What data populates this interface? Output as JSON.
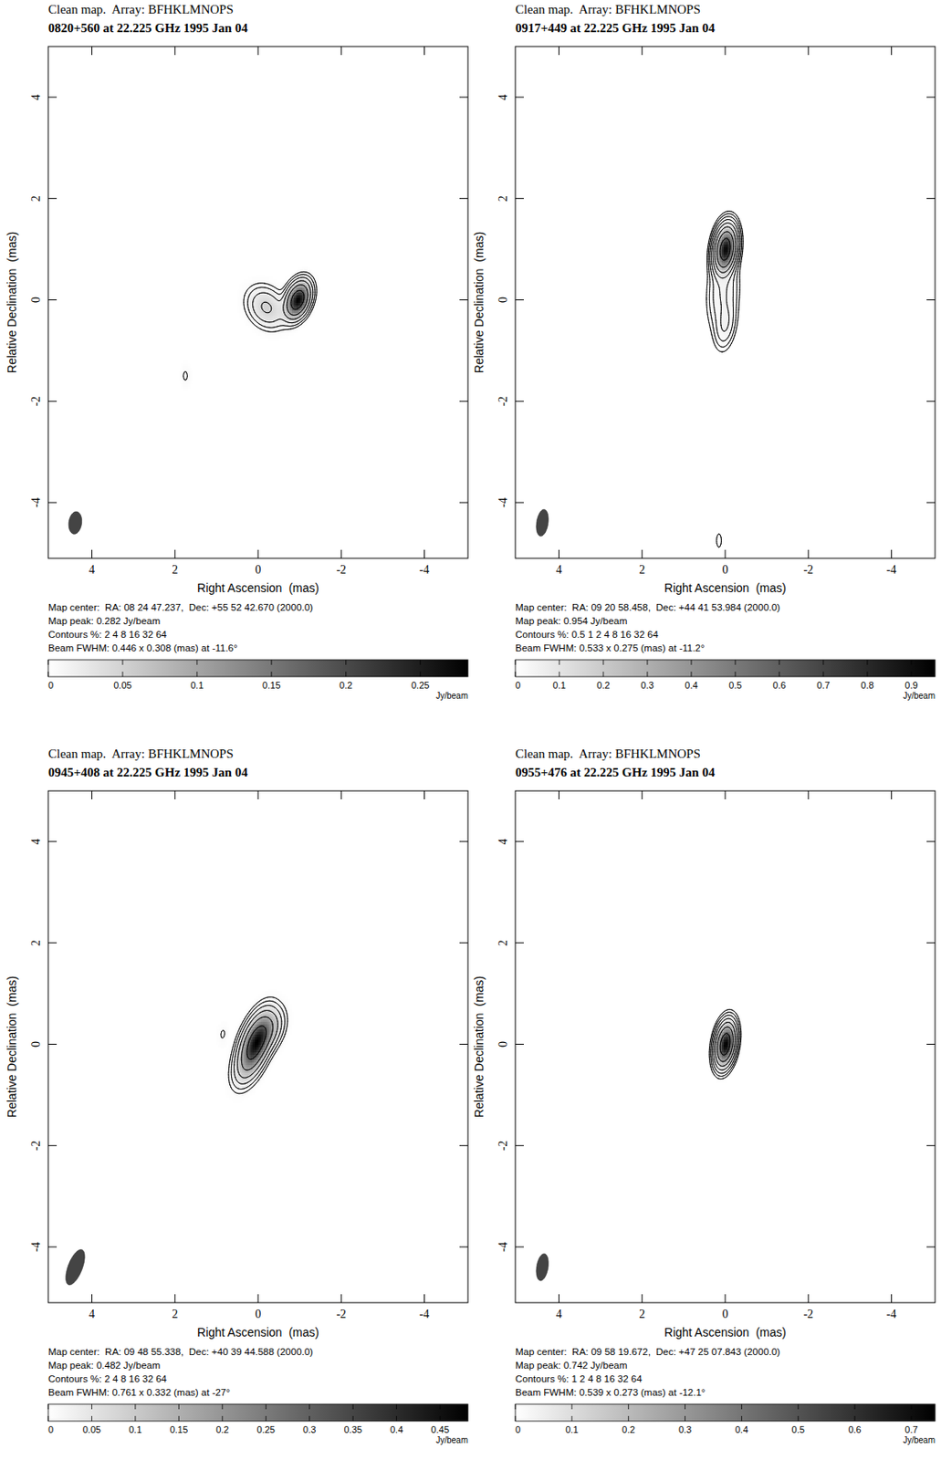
{
  "chart_data": [
    {
      "type": "contour",
      "title": "Clean map.  Array: BFHKLMNOPS",
      "subtitle": "0820+560 at 22.225 GHz 1995 Jan 04",
      "x_label": "Right Ascension  (mas)",
      "y_label": "Relative Declination  (mas)",
      "xlim": [
        5.05,
        -5.05
      ],
      "ylim": [
        -5.1,
        5.0
      ],
      "xticks": [
        4,
        2,
        0,
        -2,
        -4
      ],
      "yticks": [
        -4,
        -2,
        0,
        2,
        4
      ],
      "map_center": "Map center:  RA: 08 24 47.237,  Dec: +55 52 42.670 (2000.0)",
      "map_peak_label": "Map peak: 0.282 Jy/beam",
      "map_peak": 0.282,
      "contours_label": "Contours %: 2 4 8 16 32 64",
      "contours": [
        2,
        4,
        8,
        16,
        32,
        64
      ],
      "beam_label": "Beam FWHM: 0.446 x 0.308 (mas) at -11.6°",
      "beam": {
        "major": 0.446,
        "minor": 0.308,
        "pa": -11.6
      },
      "components": [
        {
          "x": -0.95,
          "y": 0.0,
          "peak": 0.28,
          "major": 0.5,
          "minor": 0.34,
          "pa": -30
        },
        {
          "x": -0.2,
          "y": -0.15,
          "peak": 0.05,
          "major": 0.65,
          "minor": 0.5,
          "pa": 60
        },
        {
          "x": 1.75,
          "y": -1.5,
          "peak": 0.0066,
          "major": 0.35,
          "minor": 0.2,
          "pa": 0
        }
      ],
      "colorbar": {
        "range": [
          0,
          0.282
        ],
        "ticks": [
          0,
          0.05,
          0.1,
          0.15,
          0.2,
          0.25
        ],
        "label": "Jy/beam"
      }
    },
    {
      "type": "contour",
      "title": "Clean map.  Array: BFHKLMNOPS",
      "subtitle": "0917+449 at 22.225 GHz 1995 Jan 04",
      "x_label": "Right Ascension  (mas)",
      "y_label": "Relative Declination  (mas)",
      "xlim": [
        5.05,
        -5.05
      ],
      "ylim": [
        -5.1,
        5.0
      ],
      "xticks": [
        4,
        2,
        0,
        -2,
        -4
      ],
      "yticks": [
        -4,
        -2,
        0,
        2,
        4
      ],
      "map_center": "Map center:  RA: 09 20 58.458,  Dec: +44 41 53.984 (2000.0)",
      "map_peak_label": "Map peak: 0.954 Jy/beam",
      "map_peak": 0.954,
      "contours_label": "Contours %: 0.5 1 2 4 8 16 32 64",
      "contours": [
        0.5,
        1,
        2,
        4,
        8,
        16,
        32,
        64
      ],
      "beam_label": "Beam FWHM: 0.533 x 0.275 (mas) at -11.2°",
      "beam": {
        "major": 0.533,
        "minor": 0.275,
        "pa": -11.2
      },
      "components": [
        {
          "x": 0.0,
          "y": 1.0,
          "peak": 0.93,
          "major": 0.55,
          "minor": 0.3,
          "pa": -10
        },
        {
          "x": 0.05,
          "y": 0.15,
          "peak": 0.04,
          "major": 1.0,
          "minor": 0.45,
          "pa": -5
        },
        {
          "x": 0.0,
          "y": -0.5,
          "peak": 0.035,
          "major": 0.6,
          "minor": 0.3,
          "pa": -10
        },
        {
          "x": 0.15,
          "y": -4.75,
          "peak": 0.006,
          "major": 0.45,
          "minor": 0.2,
          "pa": 0
        }
      ],
      "colorbar": {
        "range": [
          0,
          0.954
        ],
        "ticks": [
          0,
          0.1,
          0.2,
          0.3,
          0.4,
          0.5,
          0.6,
          0.7,
          0.8,
          0.9
        ],
        "label": "Jy/beam"
      }
    },
    {
      "type": "contour",
      "title": "Clean map.  Array: BFHKLMNOPS",
      "subtitle": "0945+408 at 22.225 GHz 1995 Jan 04",
      "x_label": "Right Ascension  (mas)",
      "y_label": "Relative Declination  (mas)",
      "xlim": [
        5.05,
        -5.05
      ],
      "ylim": [
        -5.1,
        5.0
      ],
      "xticks": [
        4,
        2,
        0,
        -2,
        -4
      ],
      "yticks": [
        -4,
        -2,
        0,
        2,
        4
      ],
      "map_center": "Map center:  RA: 09 48 55.338,  Dec: +40 39 44.588 (2000.0)",
      "map_peak_label": "Map peak: 0.482 Jy/beam",
      "map_peak": 0.482,
      "contours_label": "Contours %: 2 4 8 16 32 64",
      "contours": [
        2,
        4,
        8,
        16,
        32,
        64
      ],
      "beam_label": "Beam FWHM: 0.761 x 0.332 (mas) at -27°",
      "beam": {
        "major": 0.761,
        "minor": 0.332,
        "pa": -27
      },
      "components": [
        {
          "x": 0.05,
          "y": 0.05,
          "peak": 0.45,
          "major": 0.8,
          "minor": 0.4,
          "pa": -27
        },
        {
          "x": -0.3,
          "y": 0.3,
          "peak": 0.08,
          "major": 0.6,
          "minor": 0.4,
          "pa": -30
        },
        {
          "x": 0.25,
          "y": -0.4,
          "peak": 0.07,
          "major": 0.7,
          "minor": 0.4,
          "pa": -30
        },
        {
          "x": 0.85,
          "y": 0.2,
          "peak": 0.011,
          "major": 0.35,
          "minor": 0.2,
          "pa": -10
        }
      ],
      "colorbar": {
        "range": [
          0,
          0.482
        ],
        "ticks": [
          0,
          0.05,
          0.1,
          0.15,
          0.2,
          0.25,
          0.3,
          0.35,
          0.4,
          0.45
        ],
        "label": "Jy/beam"
      }
    },
    {
      "type": "contour",
      "title": "Clean map.  Array: BFHKLMNOPS",
      "subtitle": "0955+476 at 22.225 GHz 1995 Jan 04",
      "x_label": "Right Ascension  (mas)",
      "y_label": "Relative Declination  (mas)",
      "xlim": [
        5.05,
        -5.05
      ],
      "ylim": [
        -5.1,
        5.0
      ],
      "xticks": [
        4,
        2,
        0,
        -2,
        -4
      ],
      "yticks": [
        -4,
        -2,
        0,
        2,
        4
      ],
      "map_center": "Map center:  RA: 09 58 19.672,  Dec: +47 25 07.843 (2000.0)",
      "map_peak_label": "Map peak: 0.742 Jy/beam",
      "map_peak": 0.742,
      "contours_label": "Contours %: 1 2 4 8 16 32 64",
      "contours": [
        1,
        2,
        4,
        8,
        16,
        32,
        64
      ],
      "beam_label": "Beam FWHM: 0.539 x 0.273 (mas) at -12.1°",
      "beam": {
        "major": 0.539,
        "minor": 0.273,
        "pa": -12.1
      },
      "components": [
        {
          "x": 0.0,
          "y": 0.0,
          "peak": 0.742,
          "major": 0.54,
          "minor": 0.28,
          "pa": -12
        }
      ],
      "colorbar": {
        "range": [
          0,
          0.742
        ],
        "ticks": [
          0,
          0.1,
          0.2,
          0.3,
          0.4,
          0.5,
          0.6,
          0.7
        ],
        "label": "Jy/beam"
      }
    }
  ]
}
